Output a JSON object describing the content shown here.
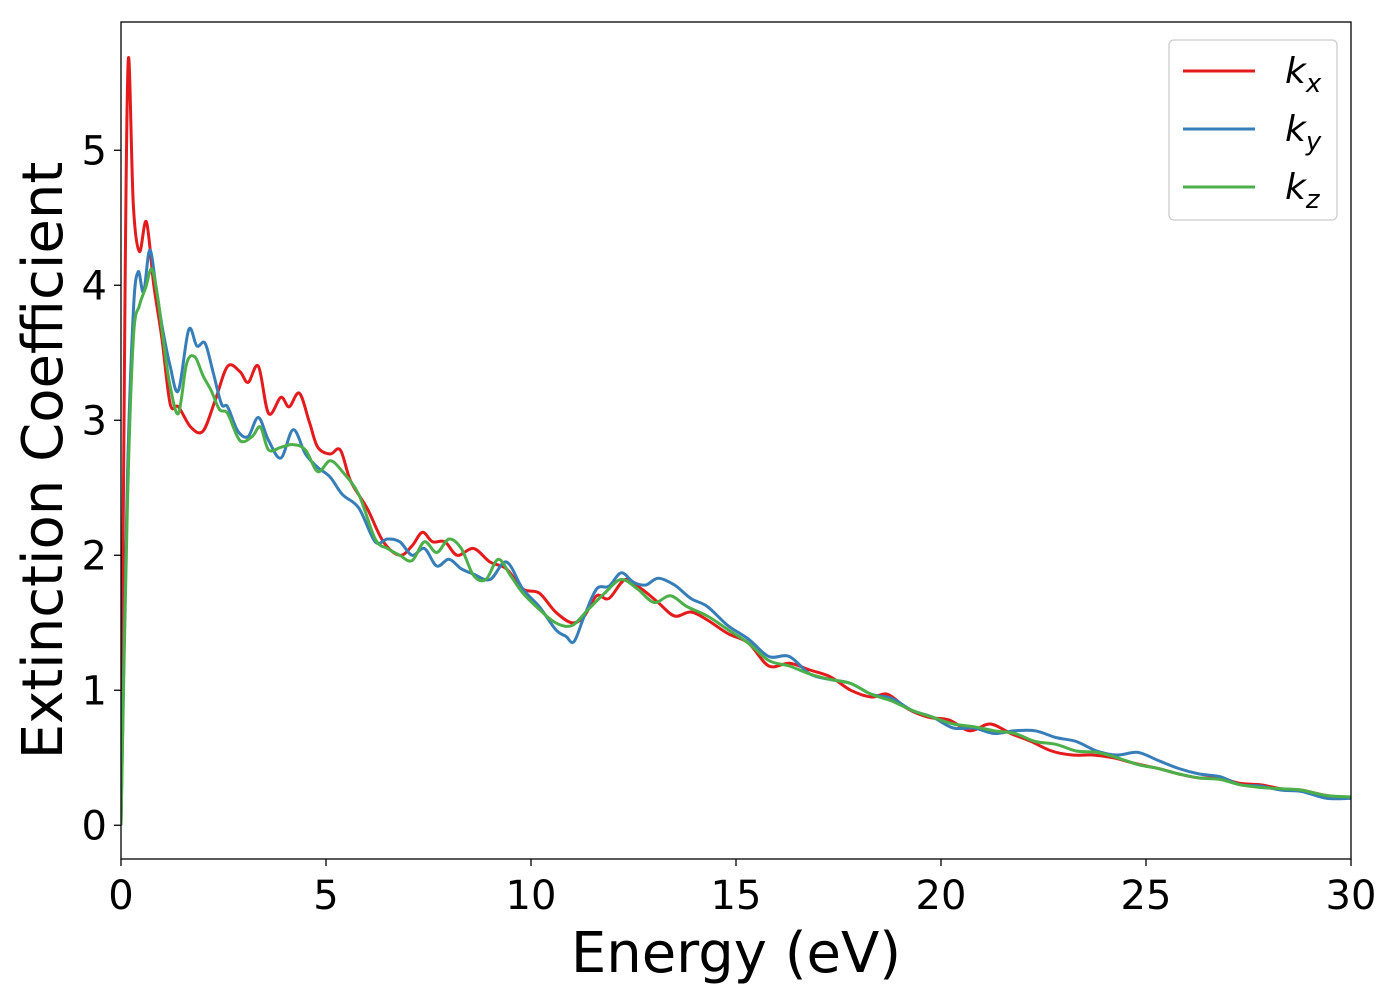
{
  "chart_data": {
    "type": "line",
    "xlabel": "Energy (eV)",
    "ylabel": "Extinction Coefficient",
    "xlim": [
      0,
      30
    ],
    "ylim": [
      -0.25,
      5.95
    ],
    "xticks": [
      0,
      5,
      10,
      15,
      20,
      25,
      30
    ],
    "yticks": [
      0,
      1,
      2,
      3,
      4,
      5
    ],
    "grid": false,
    "legend_position": "top-right",
    "series": [
      {
        "name": "k_x",
        "label_main": "k",
        "label_sub": "x",
        "color": "#e41a1c",
        "x": [
          0,
          0.1,
          0.18,
          0.3,
          0.45,
          0.62,
          0.8,
          1.0,
          1.2,
          1.4,
          1.7,
          2.0,
          2.3,
          2.6,
          2.9,
          3.1,
          3.35,
          3.6,
          3.9,
          4.1,
          4.35,
          4.6,
          4.8,
          5.1,
          5.35,
          5.6,
          6.0,
          6.4,
          6.8,
          7.1,
          7.35,
          7.6,
          7.9,
          8.2,
          8.6,
          9.0,
          9.4,
          9.8,
          10.2,
          10.6,
          11.0,
          11.3,
          11.6,
          11.9,
          12.3,
          12.7,
          13.1,
          13.5,
          13.9,
          14.3,
          14.8,
          15.3,
          15.8,
          16.3,
          16.8,
          17.3,
          17.8,
          18.3,
          18.7,
          19.2,
          19.7,
          20.2,
          20.7,
          21.2,
          21.7,
          22.2,
          22.7,
          23.2,
          23.7,
          24.2,
          24.7,
          25.3,
          25.8,
          26.3,
          26.8,
          27.3,
          27.8,
          28.3,
          28.8,
          29.4,
          30.0
        ],
        "y": [
          0.0,
          4.0,
          5.68,
          4.6,
          4.25,
          4.47,
          4.0,
          3.6,
          3.12,
          3.1,
          2.95,
          2.92,
          3.15,
          3.4,
          3.36,
          3.28,
          3.4,
          3.05,
          3.17,
          3.1,
          3.2,
          2.98,
          2.8,
          2.75,
          2.78,
          2.55,
          2.35,
          2.1,
          2.0,
          2.07,
          2.17,
          2.1,
          2.1,
          2.0,
          2.05,
          1.95,
          1.9,
          1.75,
          1.72,
          1.58,
          1.5,
          1.55,
          1.7,
          1.68,
          1.82,
          1.75,
          1.65,
          1.55,
          1.58,
          1.52,
          1.42,
          1.35,
          1.18,
          1.2,
          1.15,
          1.1,
          1.0,
          0.95,
          0.97,
          0.86,
          0.8,
          0.78,
          0.7,
          0.75,
          0.68,
          0.62,
          0.55,
          0.52,
          0.52,
          0.5,
          0.46,
          0.42,
          0.38,
          0.35,
          0.35,
          0.31,
          0.3,
          0.27,
          0.26,
          0.22,
          0.2
        ]
      },
      {
        "name": "k_y",
        "label_main": "k",
        "label_sub": "y",
        "color": "#377eb8",
        "x": [
          0,
          0.15,
          0.3,
          0.42,
          0.55,
          0.7,
          0.85,
          1.0,
          1.2,
          1.4,
          1.65,
          1.85,
          2.05,
          2.25,
          2.45,
          2.6,
          2.85,
          3.1,
          3.35,
          3.6,
          3.9,
          4.2,
          4.5,
          4.8,
          5.1,
          5.4,
          5.8,
          6.2,
          6.5,
          6.8,
          7.1,
          7.4,
          7.7,
          8.0,
          8.3,
          8.6,
          9.0,
          9.4,
          9.8,
          10.2,
          10.6,
          10.85,
          11.05,
          11.3,
          11.6,
          11.9,
          12.2,
          12.5,
          12.8,
          13.1,
          13.5,
          13.9,
          14.3,
          14.8,
          15.3,
          15.8,
          16.3,
          16.8,
          17.3,
          17.8,
          18.3,
          18.8,
          19.3,
          19.8,
          20.3,
          20.8,
          21.3,
          21.8,
          22.3,
          22.8,
          23.3,
          23.8,
          24.3,
          24.8,
          25.3,
          25.8,
          26.3,
          26.8,
          27.3,
          27.8,
          28.3,
          28.8,
          29.4,
          30.0
        ],
        "y": [
          0.0,
          2.5,
          3.8,
          4.1,
          3.95,
          4.26,
          4.0,
          3.7,
          3.4,
          3.22,
          3.67,
          3.55,
          3.57,
          3.35,
          3.12,
          3.1,
          2.92,
          2.88,
          3.02,
          2.85,
          2.72,
          2.93,
          2.75,
          2.65,
          2.58,
          2.45,
          2.35,
          2.1,
          2.12,
          2.1,
          2.0,
          2.05,
          1.92,
          1.97,
          1.9,
          1.86,
          1.82,
          1.95,
          1.75,
          1.62,
          1.45,
          1.4,
          1.36,
          1.55,
          1.75,
          1.77,
          1.87,
          1.8,
          1.78,
          1.83,
          1.78,
          1.68,
          1.62,
          1.48,
          1.38,
          1.25,
          1.25,
          1.12,
          1.08,
          1.05,
          0.97,
          0.94,
          0.85,
          0.8,
          0.72,
          0.72,
          0.68,
          0.7,
          0.7,
          0.65,
          0.62,
          0.55,
          0.52,
          0.54,
          0.48,
          0.42,
          0.38,
          0.36,
          0.3,
          0.29,
          0.26,
          0.25,
          0.2,
          0.2
        ]
      },
      {
        "name": "k_z",
        "label_main": "k",
        "label_sub": "z",
        "color": "#4daf4a",
        "x": [
          0,
          0.15,
          0.3,
          0.45,
          0.6,
          0.75,
          0.9,
          1.05,
          1.2,
          1.4,
          1.6,
          1.8,
          2.0,
          2.2,
          2.4,
          2.6,
          2.9,
          3.2,
          3.4,
          3.6,
          3.9,
          4.2,
          4.5,
          4.8,
          5.1,
          5.4,
          5.8,
          6.2,
          6.5,
          6.8,
          7.1,
          7.4,
          7.7,
          8.0,
          8.3,
          8.6,
          8.9,
          9.2,
          9.5,
          9.8,
          10.2,
          10.6,
          11.0,
          11.4,
          11.8,
          12.2,
          12.6,
          13.0,
          13.4,
          13.8,
          14.3,
          14.8,
          15.3,
          15.8,
          16.3,
          16.8,
          17.3,
          17.8,
          18.3,
          18.8,
          19.3,
          19.8,
          20.3,
          20.8,
          21.3,
          21.8,
          22.3,
          22.8,
          23.3,
          23.8,
          24.3,
          24.8,
          25.3,
          25.8,
          26.3,
          26.8,
          27.3,
          27.8,
          28.3,
          28.8,
          29.4,
          30.0
        ],
        "y": [
          0.0,
          2.3,
          3.6,
          3.85,
          3.98,
          4.12,
          3.9,
          3.55,
          3.25,
          3.05,
          3.42,
          3.47,
          3.33,
          3.22,
          3.08,
          3.05,
          2.85,
          2.88,
          2.95,
          2.78,
          2.8,
          2.82,
          2.78,
          2.62,
          2.7,
          2.62,
          2.45,
          2.12,
          2.05,
          2.0,
          1.96,
          2.1,
          2.02,
          2.12,
          2.05,
          1.85,
          1.82,
          1.97,
          1.85,
          1.72,
          1.6,
          1.5,
          1.48,
          1.6,
          1.72,
          1.82,
          1.75,
          1.65,
          1.7,
          1.62,
          1.55,
          1.45,
          1.35,
          1.22,
          1.18,
          1.12,
          1.08,
          1.05,
          0.97,
          0.92,
          0.85,
          0.8,
          0.75,
          0.73,
          0.7,
          0.68,
          0.62,
          0.6,
          0.55,
          0.54,
          0.5,
          0.45,
          0.42,
          0.38,
          0.35,
          0.34,
          0.3,
          0.28,
          0.27,
          0.26,
          0.22,
          0.21
        ]
      }
    ]
  }
}
